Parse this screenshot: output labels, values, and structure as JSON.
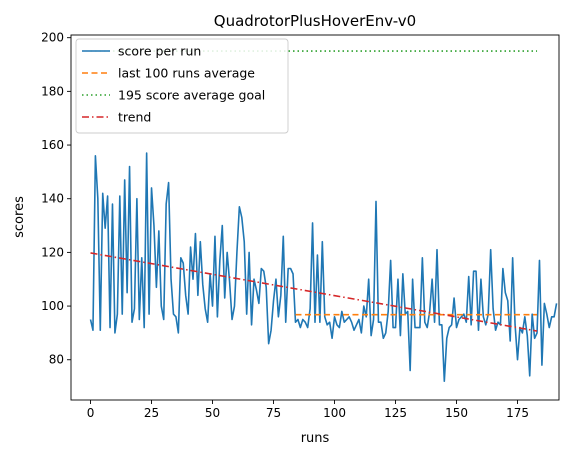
{
  "chart_data": {
    "type": "line",
    "title": "QuadrotorPlusHoverEnv-v0",
    "xlabel": "runs",
    "ylabel": "scores",
    "xlim": [
      -8,
      192
    ],
    "ylim": [
      65,
      201
    ],
    "xticks": [
      0,
      25,
      50,
      75,
      100,
      125,
      150,
      175
    ],
    "yticks": [
      80,
      100,
      120,
      140,
      160,
      180,
      200
    ],
    "grid": false,
    "legend_position": "top-left",
    "series": [
      {
        "name": "score per run",
        "color": "#1f77b4",
        "style": "solid",
        "x_start": 0,
        "values": [
          95,
          91,
          156,
          140,
          91,
          142,
          129,
          141,
          92,
          138,
          90,
          97,
          141,
          97,
          147,
          105,
          152,
          94,
          99,
          140,
          95,
          118,
          92,
          157,
          97,
          144,
          130,
          107,
          128,
          100,
          95,
          138,
          146,
          110,
          97,
          96,
          90,
          118,
          116,
          104,
          97,
          122,
          110,
          127,
          104,
          124,
          108,
          99,
          94,
          112,
          100,
          126,
          96,
          117,
          130,
          103,
          120,
          109,
          95,
          100,
          120,
          137,
          133,
          124,
          97,
          120,
          93,
          110,
          106,
          101,
          114,
          113,
          107,
          86,
          91,
          102,
          110,
          96,
          104,
          126,
          94,
          114,
          114,
          112,
          94,
          95,
          92,
          95,
          94,
          92,
          99,
          131,
          94,
          119,
          94,
          124,
          96,
          93,
          94,
          88,
          96,
          93,
          92,
          98,
          94,
          95,
          96,
          94,
          91,
          93,
          95,
          90,
          100,
          96,
          110,
          89,
          95,
          139,
          94,
          94,
          88,
          90,
          98,
          117,
          92,
          92,
          110,
          89,
          112,
          97,
          98,
          76,
          110,
          92,
          92,
          92,
          118,
          94,
          92,
          98,
          110,
          94,
          121,
          93,
          93,
          72,
          88,
          92,
          93,
          103,
          92,
          95,
          96,
          97,
          94,
          111,
          93,
          113,
          113,
          91,
          110,
          96,
          93,
          97,
          121,
          99,
          91,
          94,
          93,
          114,
          105,
          102,
          87,
          118,
          93,
          80,
          92,
          90,
          96,
          89,
          74,
          97,
          88,
          90,
          117,
          78,
          101,
          97,
          92,
          96,
          96,
          101
        ]
      },
      {
        "name": "last 100 runs average",
        "color": "#ff7f0e",
        "style": "dashed",
        "x": [
          84,
          183
        ],
        "y": [
          96.8,
          96.8
        ]
      },
      {
        "name": "195 score average goal",
        "color": "#2ca02c",
        "style": "dotted",
        "x": [
          0,
          183
        ],
        "y": [
          195,
          195
        ]
      },
      {
        "name": "trend",
        "color": "#d62728",
        "style": "dashdot",
        "x": [
          0,
          183
        ],
        "y": [
          119.8,
          90.7
        ]
      }
    ]
  }
}
